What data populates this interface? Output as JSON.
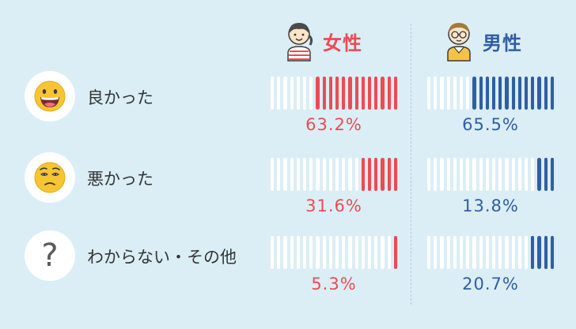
{
  "legend": {
    "female": {
      "label": "女性",
      "color": "#ec4b52",
      "icon": "girl-avatar-icon"
    },
    "male": {
      "label": "男性",
      "color": "#2f5ea3",
      "icon": "boy-avatar-icon"
    }
  },
  "rows": [
    {
      "label": "良かった",
      "icon": "grinning-face-icon",
      "female_display": "63.2%",
      "male_display": "65.5%"
    },
    {
      "label": "悪かった",
      "icon": "worried-face-icon",
      "female_display": "31.6%",
      "male_display": "13.8%"
    },
    {
      "label": "わからない・その他",
      "icon": "question-mark-icon",
      "female_display": "5.3%",
      "male_display": "20.7%"
    }
  ],
  "chart_data": {
    "type": "bar",
    "categories": [
      "良かった",
      "悪かった",
      "わからない・その他"
    ],
    "series": [
      {
        "name": "女性",
        "values": [
          63.2,
          31.6,
          5.3
        ]
      },
      {
        "name": "男性",
        "values": [
          65.5,
          13.8,
          20.7
        ]
      }
    ],
    "unit": "%",
    "ylim": [
      0,
      100
    ],
    "segments_per_bar": 20,
    "colors": {
      "female": "#ec4b52",
      "male": "#2f5ea3",
      "empty": "#ffffff",
      "background": "#dbeef6"
    }
  }
}
